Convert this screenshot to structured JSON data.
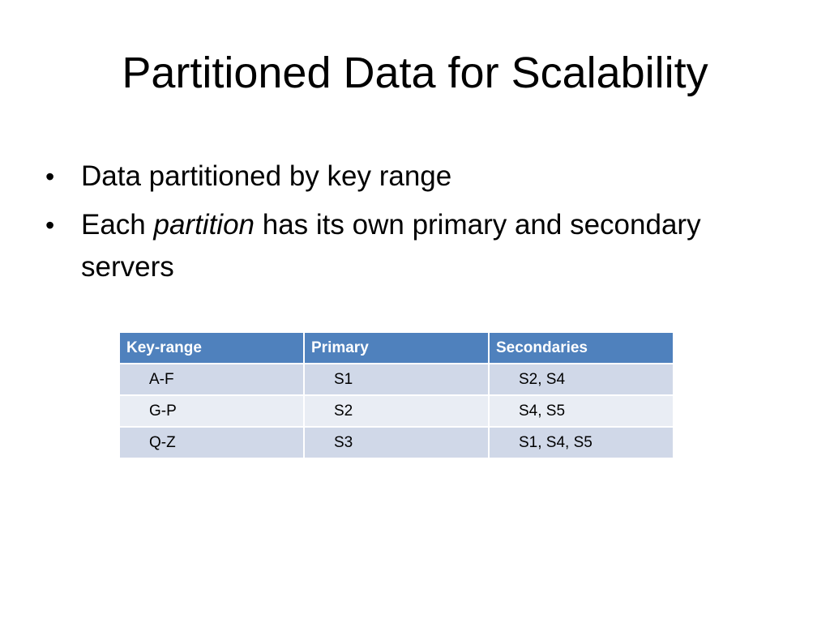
{
  "slide": {
    "title": "Partitioned Data for Scalability",
    "bullets": [
      {
        "text_before": "Data partitioned by key range",
        "text_italic": "",
        "text_after": ""
      },
      {
        "text_before": "Each ",
        "text_italic": "partition",
        "text_after": " has its own primary and secondary servers"
      }
    ],
    "bullet_glyph": "•"
  },
  "table": {
    "headers": [
      "Key-range",
      "Primary",
      "Secondaries"
    ],
    "rows": [
      [
        "A-F",
        "S1",
        "S2, S4"
      ],
      [
        "G-P",
        "S2",
        "S4, S5"
      ],
      [
        "Q-Z",
        "S3",
        "S1, S4, S5"
      ]
    ],
    "header_color": "#4f81bd",
    "band_colors": [
      "#d0d8e8",
      "#e9edf4"
    ]
  }
}
